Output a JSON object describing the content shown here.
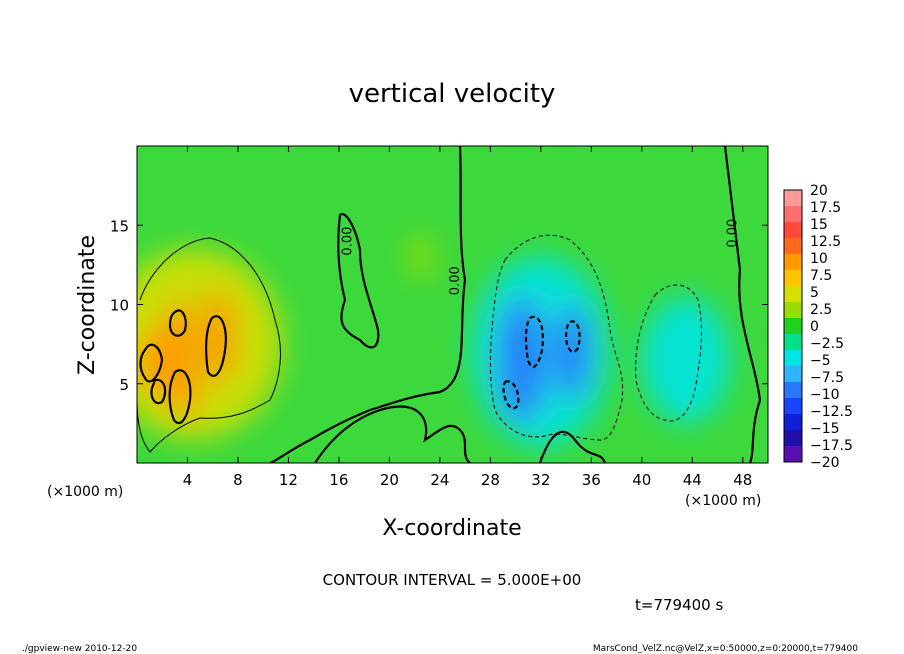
{
  "chart_data": {
    "type": "heatmap",
    "title": "vertical velocity",
    "xlabel": "X-coordinate",
    "ylabel": "Z-coordinate",
    "x_unit_left": "(×1000 m)",
    "x_unit_right": "(×1000 m)",
    "y_unit": "(×1000 m)",
    "x_ticks": [
      4,
      8,
      12,
      16,
      20,
      24,
      28,
      32,
      36,
      40,
      44,
      48
    ],
    "y_ticks": [
      5,
      10,
      15
    ],
    "xlim": [
      0,
      50
    ],
    "ylim": [
      0,
      20
    ],
    "colorbar": {
      "labels": [
        "20",
        "17.5",
        "15",
        "12.5",
        "10",
        "7.5",
        "5",
        "2.5",
        "0",
        "−2.5",
        "−5",
        "−7.5",
        "−10",
        "−12.5",
        "−15",
        "−17.5",
        "−20"
      ],
      "colors": [
        "#ff9a9a",
        "#ff6e6e",
        "#ff4a3a",
        "#ff6a1a",
        "#ff9a00",
        "#ffc400",
        "#d6e000",
        "#98dc00",
        "#1ed21e",
        "#00e088",
        "#00e4e4",
        "#30b4ff",
        "#2a78ff",
        "#1a44ff",
        "#1020d8",
        "#2010a8",
        "#5a10b0"
      ]
    },
    "field": {
      "background": "#3cd83c",
      "features": [
        {
          "x": 4.5,
          "z": 7.5,
          "rx": 7,
          "rz": 6,
          "value": 6
        },
        {
          "x": 2.5,
          "z": 6.5,
          "rx": 2.5,
          "rz": 2.5,
          "value": 10
        },
        {
          "x": 6.5,
          "z": 8,
          "rx": 1.5,
          "rz": 3,
          "value": 10
        },
        {
          "x": 3.5,
          "z": 9,
          "rx": 1,
          "rz": 1.5,
          "value": 10
        },
        {
          "x": 3.8,
          "z": 4.5,
          "rx": 1.2,
          "rz": 1.8,
          "value": 10
        },
        {
          "x": 1,
          "z": 6.5,
          "rx": 1,
          "rz": 1.5,
          "value": 10
        },
        {
          "x": 22.5,
          "z": 13,
          "rx": 1,
          "rz": 1.5,
          "value": 3
        },
        {
          "x": 32,
          "z": 7,
          "rx": 5.5,
          "rz": 6,
          "value": -6
        },
        {
          "x": 30.5,
          "z": 6.5,
          "rx": 2,
          "rz": 4,
          "value": -10
        },
        {
          "x": 34.5,
          "z": 7,
          "rx": 1.5,
          "rz": 3,
          "value": -10
        },
        {
          "x": 43.5,
          "z": 6.5,
          "rx": 3.5,
          "rz": 4,
          "value": -6
        }
      ]
    },
    "contour_labels": [
      {
        "text": "0.00",
        "x": 17,
        "z": 14
      },
      {
        "text": "0.00",
        "x": 25.5,
        "z": 11.5
      },
      {
        "text": "0.00",
        "x": 47.5,
        "z": 14.5
      }
    ],
    "contour_interval_text": "CONTOUR INTERVAL = 5.000E+00",
    "time_text": "t=779400 s"
  },
  "footer": {
    "left": "./gpview-new   2010-12-20",
    "right": "MarsCond_VelZ.nc@VelZ,x=0:50000,z=0:20000,t=779400"
  }
}
